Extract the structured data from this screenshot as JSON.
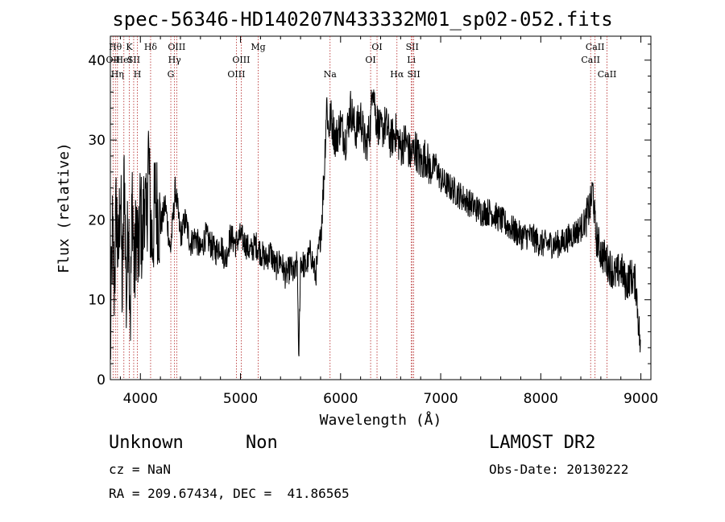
{
  "chart_data": {
    "type": "line",
    "title": "spec-56346-HD140207N433332M01_sp02-052.fits",
    "xlabel": "Wavelength (Å)",
    "ylabel": "Flux (relative)",
    "xlim": [
      3700,
      9100
    ],
    "ylim": [
      0,
      43
    ],
    "xticks": [
      "4000",
      "5000",
      "6000",
      "7000",
      "8000",
      "9000"
    ],
    "yticks": [
      "0",
      "10",
      "20",
      "30",
      "40"
    ],
    "series": [
      {
        "x": [
          3700,
          3720,
          3740,
          3760,
          3780,
          3800,
          3820,
          3840,
          3860,
          3880,
          3900,
          3920,
          3940,
          3960,
          3980,
          4000,
          4020,
          4040,
          4060,
          4080,
          4100,
          4120,
          4150,
          4200,
          4250,
          4300,
          4350,
          4400,
          4450,
          4500,
          4550,
          4600,
          4650,
          4700,
          4750,
          4800,
          4850,
          4900,
          4950,
          5000,
          5050,
          5100,
          5150,
          5200,
          5250,
          5300,
          5350,
          5400,
          5450,
          5500,
          5540,
          5570,
          5580,
          5600,
          5650,
          5700,
          5750,
          5800,
          5820,
          5840,
          5860,
          5880,
          5900,
          5950,
          6000,
          6050,
          6100,
          6150,
          6200,
          6250,
          6300,
          6320,
          6350,
          6400,
          6450,
          6500,
          6550,
          6600,
          6650,
          6700,
          6750,
          6800,
          6850,
          6900,
          6950,
          7000,
          7100,
          7200,
          7300,
          7400,
          7500,
          7600,
          7700,
          7800,
          7900,
          8000,
          8100,
          8200,
          8300,
          8400,
          8450,
          8500,
          8520,
          8550,
          8600,
          8650,
          8700,
          8750,
          8800,
          8850,
          8900,
          8950,
          9000
        ],
        "y": [
          3,
          18,
          12,
          22,
          14,
          25,
          10,
          27,
          9,
          22,
          8,
          24,
          12,
          20,
          14,
          22,
          16,
          24,
          18,
          29,
          20,
          17,
          23,
          19,
          22,
          16,
          24,
          18,
          20,
          17,
          18,
          16,
          18,
          17,
          16,
          17,
          15,
          18,
          17,
          18,
          17,
          16,
          17,
          16,
          15,
          16,
          14,
          15,
          13,
          14,
          13,
          15,
          1,
          15,
          14,
          16,
          13,
          18,
          22,
          27,
          35,
          31,
          33,
          30,
          32,
          30,
          34,
          31,
          33,
          29,
          32,
          38,
          33,
          31,
          32,
          30,
          31,
          29,
          30,
          28,
          29,
          27,
          28,
          26,
          27,
          25,
          24,
          23,
          22,
          21,
          21,
          20,
          19,
          18,
          18,
          17,
          17,
          17,
          18,
          19,
          20,
          22,
          24,
          18,
          16,
          15,
          14,
          13,
          14,
          12,
          13,
          12,
          3
        ]
      }
    ],
    "lines": [
      {
        "w": 3727,
        "label": "OII",
        "row": 2
      },
      {
        "w": 3750,
        "label": "Hθ",
        "row": 1
      },
      {
        "w": 3771,
        "label": "Hη",
        "row": 3
      },
      {
        "w": 3835,
        "label": "HeI",
        "row": 2
      },
      {
        "w": 3889,
        "label": "K",
        "row": 1
      },
      {
        "w": 3933,
        "label": "SII",
        "row": 2
      },
      {
        "w": 3970,
        "label": "H",
        "row": 3
      },
      {
        "w": 4102,
        "label": "Hδ",
        "row": 1
      },
      {
        "w": 4304,
        "label": "G",
        "row": 3
      },
      {
        "w": 4341,
        "label": "Hγ",
        "row": 2
      },
      {
        "w": 4363,
        "label": "OIII",
        "row": 1
      },
      {
        "w": 4959,
        "label": "OIII",
        "row": 3
      },
      {
        "w": 5007,
        "label": "OIII",
        "row": 2
      },
      {
        "w": 5177,
        "label": "Mg",
        "row": 1
      },
      {
        "w": 5895,
        "label": "Na",
        "row": 3
      },
      {
        "w": 6300,
        "label": "OI",
        "row": 2
      },
      {
        "w": 6364,
        "label": "OI",
        "row": 1
      },
      {
        "w": 6563,
        "label": "Hα",
        "row": 3
      },
      {
        "w": 6707,
        "label": "Li",
        "row": 2
      },
      {
        "w": 6716,
        "label": "SII",
        "row": 1
      },
      {
        "w": 6731,
        "label": "SII",
        "row": 3
      },
      {
        "w": 8498,
        "label": "CaII",
        "row": 2
      },
      {
        "w": 8542,
        "label": "CaII",
        "row": 1
      },
      {
        "w": 8662,
        "label": "CaII",
        "row": 3
      }
    ]
  },
  "info": {
    "object_name": "Unknown",
    "object_type": "Non",
    "survey": "LAMOST DR2",
    "cz": "cz = NaN",
    "obs_date": "Obs-Date: 20130222",
    "radec": "RA = 209.67434, DEC =  41.86565"
  }
}
